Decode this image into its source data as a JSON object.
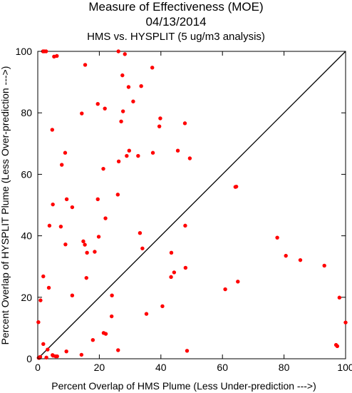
{
  "header": {
    "title": "Measure of Effectiveness (MOE)",
    "date": "04/13/2014",
    "subtitle": "HMS vs. HYSPLIT  (5 ug/m3 analysis)"
  },
  "chart_data": {
    "type": "scatter",
    "title": "Measure of Effectiveness (MOE)",
    "subtitle": "04/13/2014 — HMS vs. HYSPLIT  (5 ug/m3 analysis)",
    "xlabel": "Percent Overlap of HMS Plume (Less Under-prediction --->)",
    "ylabel": "Percent Overlap of HYSPLIT Plume (Less Over-prediction --->)",
    "xlim": [
      0,
      100
    ],
    "ylim": [
      0,
      100
    ],
    "xticks": [
      "0",
      "20",
      "40",
      "60",
      "80",
      "100"
    ],
    "yticks": [
      "0",
      "20",
      "40",
      "60",
      "80",
      "100"
    ],
    "grid": false,
    "diagonal_reference_line": true,
    "point_color": "#ff0000",
    "x": [
      1.7,
      2.1,
      2.7,
      6.2,
      5.3,
      26.2,
      28.3,
      37.2,
      27.5,
      15.4,
      29.5,
      33.6,
      31.0,
      19.5,
      21.8,
      14.3,
      27.7,
      39.8,
      39.5,
      47.8,
      27.1,
      4.7,
      28.9,
      8.9,
      37.4,
      45.5,
      29.7,
      49.4,
      32.6,
      26.3,
      7.8,
      21.3,
      26.0,
      19.5,
      9.4,
      4.9,
      11.2,
      22.0,
      3.8,
      7.5,
      47.9,
      33.2,
      19.8,
      14.8,
      15.3,
      16.0,
      18.5,
      34.0,
      43.4,
      64.2,
      64.5,
      77.8,
      80.6,
      85.3,
      93.1,
      9.0,
      15.8,
      48.0,
      44.3,
      43.3,
      1.8,
      3.6,
      65.0,
      60.9,
      11.2,
      98.0,
      0.9,
      24.1,
      40.5,
      35.3,
      24.0,
      21.4,
      22.1,
      0.2,
      100.0,
      17.9,
      1.8,
      26.1,
      48.5,
      9.3,
      14.2,
      97.3,
      96.9,
      3.2,
      4.8,
      5.0,
      5.8,
      0.8,
      0.5,
      0.3,
      0.6,
      2.8,
      6.3
    ],
    "y": [
      100.0,
      100.0,
      100.0,
      98.5,
      98.3,
      100.0,
      99.1,
      94.7,
      92.2,
      95.6,
      88.4,
      88.7,
      83.7,
      82.9,
      81.4,
      79.8,
      80.5,
      78.2,
      75.6,
      76.6,
      77.2,
      74.5,
      66.0,
      67.0,
      67.0,
      67.7,
      67.7,
      65.2,
      66.0,
      64.2,
      63.1,
      61.8,
      53.4,
      51.9,
      51.9,
      50.2,
      49.3,
      45.7,
      43.3,
      43.0,
      43.3,
      40.9,
      39.7,
      38.2,
      37.1,
      34.5,
      34.8,
      35.9,
      34.5,
      55.9,
      56.0,
      39.4,
      33.5,
      32.1,
      30.3,
      37.2,
      26.3,
      29.6,
      28.1,
      26.6,
      26.8,
      23.1,
      25.1,
      22.6,
      20.6,
      19.9,
      19.0,
      20.6,
      17.1,
      14.6,
      13.8,
      8.4,
      8.1,
      11.9,
      11.8,
      6.1,
      4.8,
      2.8,
      2.6,
      2.4,
      1.3,
      4.1,
      4.5,
      3.0,
      1.2,
      1.0,
      0.8,
      0.6,
      0.3,
      0.3,
      0.5,
      0.4,
      0.8
    ]
  }
}
